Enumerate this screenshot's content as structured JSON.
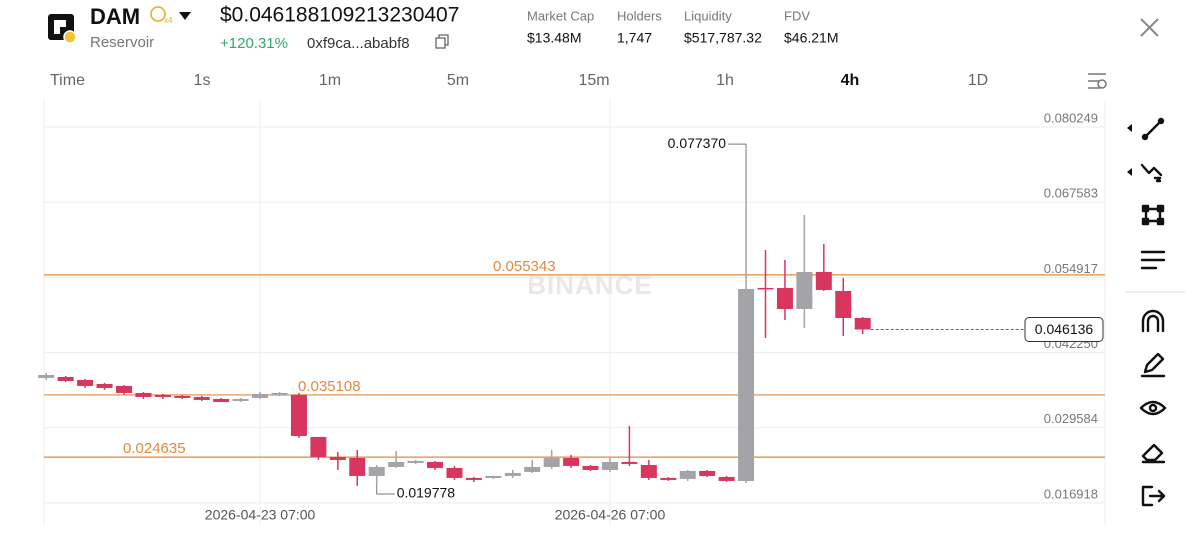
{
  "header": {
    "symbol": "DAM",
    "subtitle": "Reservoir",
    "price": "$0.046188109213230407",
    "change": "+120.31%",
    "address": "0xf9ca...ababf8"
  },
  "stats": [
    {
      "label": "Market Cap",
      "value": "$13.48M"
    },
    {
      "label": "Holders",
      "value": "1,747"
    },
    {
      "label": "Liquidity",
      "value": "$517,787.32"
    },
    {
      "label": "FDV",
      "value": "$46.21M"
    }
  ],
  "timeframes": [
    "Time",
    "1s",
    "1m",
    "5m",
    "15m",
    "1h",
    "4h",
    "1D"
  ],
  "active_timeframe": "4h",
  "chart_data": {
    "type": "candlestick",
    "watermark": "BINANCE",
    "categories": [
      null,
      null,
      null,
      null,
      null,
      null,
      null,
      null,
      null,
      null,
      null,
      "2026-04-23 07:00",
      null,
      null,
      null,
      null,
      null,
      null,
      null,
      null,
      null,
      null,
      null,
      null,
      null,
      null,
      null,
      null,
      null,
      "2026-04-26 07:00",
      null,
      null,
      null,
      null,
      null,
      null,
      null,
      null,
      null,
      null,
      null,
      null,
      null
    ],
    "open": [
      0.03797,
      0.038138,
      0.037633,
      0.036959,
      0.036622,
      0.035443,
      0.035106,
      0.034938,
      0.034769,
      0.034432,
      0.034096,
      0.034601,
      0.035106,
      0.035106,
      0.028032,
      0.024663,
      0.024494,
      0.021463,
      0.022979,
      0.023652,
      0.023821,
      0.02281,
      0.021126,
      0.021126,
      0.021463,
      0.022136,
      0.022979,
      0.024494,
      0.023147,
      0.022473,
      0.023821,
      0.023315,
      0.021126,
      0.020957,
      0.022305,
      0.021294,
      0.02062,
      0.053129,
      0.053129,
      0.049592,
      0.055824,
      0.052624,
      0.048076
    ],
    "high": [
      0.038812,
      0.038307,
      0.037801,
      0.037127,
      0.036791,
      0.035612,
      0.035275,
      0.035106,
      0.034938,
      0.034601,
      0.034601,
      0.035612,
      0.035612,
      0.035443,
      0.028032,
      0.025505,
      0.025842,
      0.023315,
      0.025674,
      0.024158,
      0.023989,
      0.023147,
      0.021294,
      0.021463,
      0.022473,
      0.024158,
      0.025842,
      0.025,
      0.023315,
      0.024494,
      0.029885,
      0.024158,
      0.021294,
      0.022473,
      0.022473,
      0.021463,
      0.07737,
      0.05953,
      0.057846,
      0.065425,
      0.060541,
      0.054814,
      0.048245
    ],
    "low": [
      0.037633,
      0.037296,
      0.036285,
      0.035948,
      0.035106,
      0.034432,
      0.034432,
      0.034432,
      0.034096,
      0.033927,
      0.033927,
      0.034432,
      0.034938,
      0.027863,
      0.024158,
      0.022473,
      0.019797,
      0.019778,
      0.02281,
      0.023484,
      0.022473,
      0.020789,
      0.020452,
      0.020957,
      0.021126,
      0.021968,
      0.022642,
      0.02281,
      0.022305,
      0.022136,
      0.023147,
      0.020789,
      0.02062,
      0.02062,
      0.021294,
      0.020452,
      0.020283,
      0.044707,
      0.047739,
      0.046392,
      0.052624,
      0.045044,
      0.045381
    ],
    "close": [
      0.038475,
      0.037464,
      0.036622,
      0.036285,
      0.035443,
      0.034769,
      0.034769,
      0.034601,
      0.034264,
      0.033927,
      0.034432,
      0.035275,
      0.035443,
      0.0282,
      0.024663,
      0.024158,
      0.021463,
      0.022979,
      0.023821,
      0.023989,
      0.02281,
      0.021126,
      0.020789,
      0.021463,
      0.021968,
      0.022979,
      0.024494,
      0.023147,
      0.022473,
      0.023821,
      0.023484,
      0.021126,
      0.020789,
      0.022305,
      0.021463,
      0.02062,
      0.052961,
      0.052961,
      0.049592,
      0.055824,
      0.052792,
      0.048076,
      0.046136
    ],
    "up_color": "#a3a3a8",
    "down_color": "#d9365f",
    "high_label": "0.077370",
    "levels": [
      0.055343,
      0.035108,
      0.024635
    ],
    "level_color": "#e2893c",
    "ylim": [
      0.0132,
      0.0848
    ],
    "yticks": [
      0.080249,
      0.067583,
      0.054917,
      {
        "value": 0.04225,
        "label": "0.042250"
      },
      0.029584,
      0.016918
    ],
    "grid": true
  }
}
